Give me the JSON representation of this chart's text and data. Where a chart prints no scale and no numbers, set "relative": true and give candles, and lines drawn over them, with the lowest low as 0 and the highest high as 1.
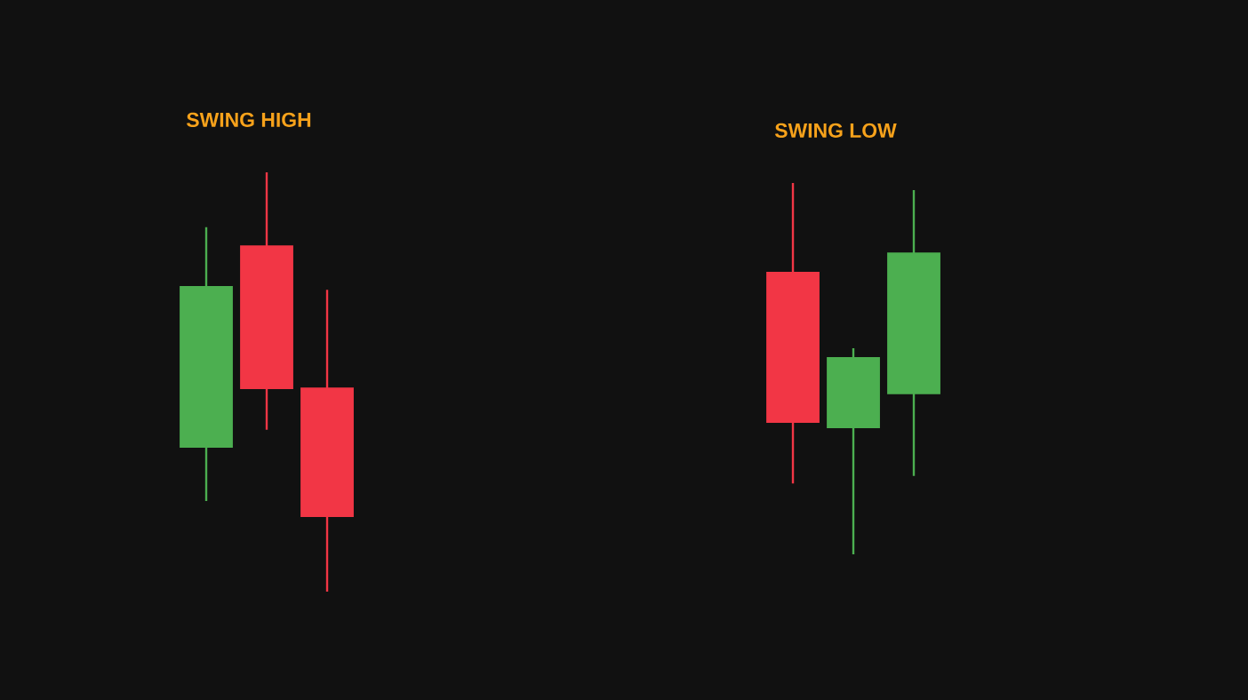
{
  "chart_data": [
    {
      "type": "candlestick",
      "title": "SWING HIGH",
      "relative": true,
      "categories": [
        null,
        null,
        null
      ],
      "ohlc": [
        [
          0.343,
          0.869,
          0.216,
          0.729
        ],
        [
          0.826,
          1,
          0.386,
          0.483
        ],
        [
          0.487,
          0.72,
          0,
          0.178
        ]
      ],
      "colors": [
        "#4caf50",
        "#f23645",
        "#f23645"
      ]
    },
    {
      "type": "candlestick",
      "title": "SWING LOW",
      "relative": true,
      "categories": [
        null,
        null,
        null
      ],
      "ohlc": [
        [
          0.761,
          1,
          0.191,
          0.354
        ],
        [
          0.34,
          0.555,
          0,
          0.531
        ],
        [
          0.431,
          0.981,
          0.211,
          0.813
        ]
      ],
      "colors": [
        "#f23645",
        "#4caf50",
        "#4caf50"
      ]
    }
  ]
}
